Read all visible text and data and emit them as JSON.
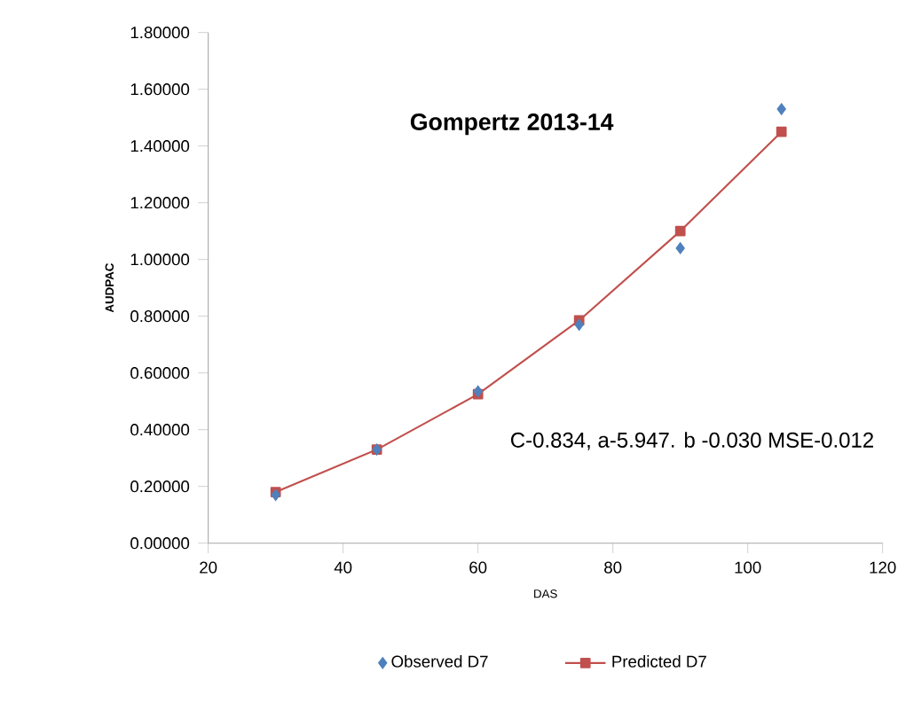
{
  "chart_data": {
    "type": "line",
    "title": "Gompertz 2013-14",
    "xlabel": "DAS",
    "ylabel": "AUDPAC",
    "x": [
      30,
      45,
      60,
      75,
      90,
      105
    ],
    "series": [
      {
        "name": "Observed D7",
        "type": "scatter",
        "marker": "diamond",
        "color": "#4f81bd",
        "values": [
          0.17,
          0.33,
          0.535,
          0.77,
          1.04,
          1.53
        ]
      },
      {
        "name": "Predicted D7",
        "marker": "square",
        "line_style": "solid",
        "color": "#c0504d",
        "values": [
          0.18,
          0.33,
          0.525,
          0.785,
          1.1,
          1.45
        ]
      }
    ],
    "xlim": [
      20,
      120
    ],
    "xticks": [
      20,
      40,
      60,
      80,
      100,
      120
    ],
    "ylim": [
      0,
      1.8
    ],
    "yticks": [
      {
        "value": 0,
        "label": "0.00000"
      },
      {
        "value": 0.2,
        "label": "0.20000"
      },
      {
        "value": 0.4,
        "label": "0.40000"
      },
      {
        "value": 0.6,
        "label": "0.60000"
      },
      {
        "value": 0.8,
        "label": "0.80000"
      },
      {
        "value": 1.0,
        "label": "1.00000"
      },
      {
        "value": 1.2,
        "label": "1.20000"
      },
      {
        "value": 1.4,
        "label": "1.40000"
      },
      {
        "value": 1.6,
        "label": "1.60000"
      },
      {
        "value": 1.8,
        "label": "1.80000"
      }
    ],
    "annotations": [
      "C-0.834, a-5.947. b -0.030 MSE-0.012"
    ],
    "grid": false,
    "legend": "bottom"
  }
}
